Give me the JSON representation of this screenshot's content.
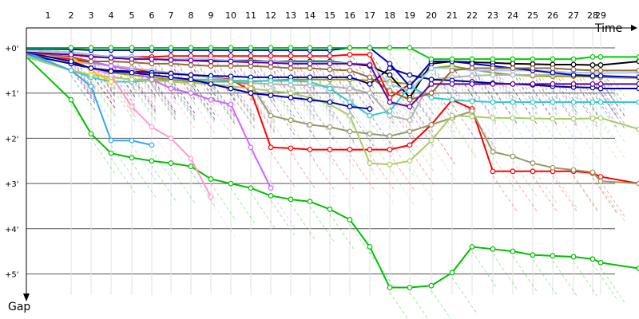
{
  "chart_data": {
    "type": "line",
    "xlabel": "Time",
    "ylabel": "Gap",
    "x": [
      1,
      2,
      3,
      4,
      5,
      6,
      7,
      8,
      9,
      10,
      11,
      12,
      13,
      14,
      15,
      16,
      17,
      18,
      19,
      20,
      21,
      22,
      23,
      24,
      25,
      26,
      27,
      28,
      29,
      30
    ],
    "x_tick_labels": [
      "1",
      "2",
      "3",
      "4",
      "5",
      "6",
      "7",
      "8",
      "9",
      "10",
      "11",
      "12",
      "13",
      "14",
      "15",
      "16",
      "17",
      "18",
      "19",
      "20",
      "21",
      "22",
      "23",
      "24",
      "25",
      "26",
      "27",
      "28",
      "29"
    ],
    "y_tick_labels": [
      "+0'",
      "+1'",
      "+2'",
      "+3'",
      "+4'",
      "+5'"
    ],
    "ylim": [
      0,
      5.8
    ],
    "y_inverted": true,
    "grid": true,
    "series": [
      {
        "color": "#00c000",
        "values": [
          0.2,
          1.15,
          1.9,
          2.33,
          2.43,
          2.5,
          2.55,
          2.62,
          2.9,
          3.0,
          3.1,
          3.27,
          3.35,
          3.4,
          3.57,
          3.8,
          4.4,
          5.3,
          5.3,
          5.26,
          4.97,
          4.4,
          4.45,
          4.5,
          4.58,
          4.6,
          4.62,
          4.67,
          4.75,
          4.88
        ]
      },
      {
        "color": "#ff0000",
        "values": [
          0.15,
          0.25,
          0.32,
          0.4,
          0.45,
          0.55,
          0.57,
          0.6,
          0.65,
          0.7,
          0.95,
          2.2,
          2.22,
          2.25,
          2.25,
          2.25,
          2.25,
          2.25,
          2.15,
          1.7,
          1.15,
          1.35,
          2.73,
          2.73,
          2.73,
          2.73,
          2.73,
          2.77,
          2.85,
          3.0
        ]
      },
      {
        "color": "#ff0000",
        "values": [
          0.1,
          0.15,
          0.18,
          0.2,
          0.2,
          0.2,
          0.18,
          0.18,
          0.18,
          0.18,
          0.18,
          0.18,
          0.18,
          0.18,
          0.18,
          0.15,
          0.15,
          1.1,
          0.8,
          0.0,
          0.0,
          0.0,
          0.0,
          0.0,
          0.0,
          0.0,
          0.0,
          0.0,
          0.0,
          0.0
        ]
      },
      {
        "color": "#999900",
        "values": [
          0.15,
          0.35,
          0.45,
          0.55,
          0.6,
          0.65,
          0.7,
          0.75,
          0.75,
          0.75,
          0.75,
          0.72,
          0.7,
          0.7,
          0.7,
          0.7,
          0.72,
          0.75,
          0.8,
          0.45,
          0.4,
          0.48,
          0.55,
          0.6,
          0.62,
          0.63,
          0.63,
          0.64,
          0.65,
          0.67
        ]
      },
      {
        "color": "#b2b2b2",
        "values": [
          0.1,
          0.3,
          0.35,
          0.4,
          0.45,
          0.5,
          0.55,
          0.6,
          0.65,
          0.72,
          0.78,
          0.8,
          0.82,
          0.83,
          0.85,
          0.9,
          1.0,
          1.5,
          1.6,
          0.7,
          0.65,
          0.62,
          0.6,
          0.6,
          0.6,
          0.6,
          0.6,
          0.6,
          0.62,
          0.67
        ]
      },
      {
        "color": "#000099",
        "values": [
          0.15,
          0.35,
          0.45,
          0.5,
          0.52,
          0.55,
          0.57,
          0.6,
          0.62,
          0.63,
          0.65,
          0.65,
          0.65,
          0.65,
          0.65,
          0.65,
          0.8,
          0.45,
          0.6,
          0.7,
          0.72,
          0.75,
          0.78,
          0.8,
          0.82,
          0.85,
          0.87,
          0.88,
          0.9,
          0.9
        ]
      },
      {
        "color": "#000000",
        "values": [
          0.05,
          0.1,
          0.15,
          0.2,
          0.2,
          0.25,
          0.25,
          0.27,
          0.28,
          0.28,
          0.28,
          0.3,
          0.3,
          0.3,
          0.3,
          0.35,
          0.4,
          0.6,
          1.1,
          0.35,
          0.3,
          0.32,
          0.33,
          0.35,
          0.36,
          0.37,
          0.37,
          0.38,
          0.38,
          0.3
        ]
      },
      {
        "color": "#99ccff",
        "values": [
          0.05,
          0.1,
          0.15,
          0.2,
          0.2,
          0.25,
          0.25,
          0.25,
          0.25,
          0.28,
          0.3,
          0.3,
          0.32,
          0.32,
          0.32,
          0.35,
          0.35,
          0.8,
          0.95,
          0.45,
          0.45,
          0.5,
          0.5,
          0.5,
          0.5,
          0.52,
          0.55,
          0.55,
          0.56,
          0.55
        ]
      },
      {
        "color": "#33cccc",
        "values": [
          0.15,
          0.5,
          0.65,
          0.75,
          0.75,
          0.72,
          0.7,
          0.7,
          0.7,
          0.72,
          0.73,
          0.73,
          0.73,
          0.75,
          0.9,
          1.2,
          1.5,
          1.4,
          0.85,
          1.1,
          1.15,
          1.18,
          1.2,
          1.2,
          1.2,
          1.2,
          1.2,
          1.2,
          1.2,
          1.2
        ]
      },
      {
        "color": "#999966",
        "values": [
          0.2,
          0.5,
          0.6,
          0.65,
          0.7,
          0.7,
          0.72,
          0.72,
          0.75,
          0.75,
          0.8,
          1.5,
          1.6,
          1.7,
          1.75,
          1.85,
          1.9,
          1.95,
          1.85,
          1.7,
          1.55,
          1.4,
          2.3,
          2.4,
          2.55,
          2.65,
          2.7,
          2.75,
          2.95,
          3.0
        ]
      },
      {
        "color": "#aacc66",
        "values": [
          0.2,
          0.5,
          0.6,
          0.65,
          0.7,
          0.72,
          0.75,
          0.78,
          0.8,
          0.85,
          0.9,
          0.95,
          1.0,
          1.1,
          1.25,
          1.5,
          2.55,
          2.58,
          2.5,
          2.05,
          1.5,
          1.52,
          1.55,
          1.55,
          1.56,
          1.57,
          1.57,
          1.56,
          1.55,
          1.8
        ]
      },
      {
        "color": "#cc66ff",
        "values": [
          0.1,
          0.2,
          0.3,
          0.4,
          0.5,
          0.7,
          0.9,
          1.0,
          1.15,
          1.25,
          2.2,
          3.1,
          0.0,
          0.0,
          0.0,
          0.0,
          0.0,
          0.0,
          0.0,
          0.0,
          0.0,
          0.0,
          0.0,
          0.0,
          0.0,
          0.0,
          0.0,
          0.0,
          0.0,
          0.0
        ]
      },
      {
        "color": "#ff99cc",
        "values": [
          0.1,
          0.3,
          0.45,
          0.6,
          1.3,
          1.75,
          2.0,
          2.45,
          3.3,
          0.0,
          0.0,
          0.0,
          0.0,
          0.0,
          0.0,
          0.0,
          0.0,
          0.0,
          0.0,
          0.0,
          0.0,
          0.0,
          0.0,
          0.0,
          0.0,
          0.0,
          0.0,
          0.0,
          0.0,
          0.0
        ]
      },
      {
        "color": "#33aaee",
        "values": [
          0.1,
          0.5,
          0.85,
          2.05,
          2.05,
          2.15,
          0.0,
          0.0,
          0.0,
          0.0,
          0.0,
          0.0,
          0.0,
          0.0,
          0.0,
          0.0,
          0.0,
          0.0,
          0.0,
          0.0,
          0.0,
          0.0,
          0.0,
          0.0,
          0.0,
          0.0,
          0.0,
          0.0,
          0.0,
          0.0
        ]
      },
      {
        "color": "#ffcc00",
        "values": [
          0.1,
          0.2,
          0.5,
          0.75,
          0.0,
          0.0,
          0.0,
          0.0,
          0.0,
          0.0,
          0.0,
          0.0,
          0.0,
          0.0,
          0.0,
          0.0,
          0.0,
          0.0,
          0.0,
          0.0,
          0.0,
          0.0,
          0.0,
          0.0,
          0.0,
          0.0,
          0.0,
          0.0,
          0.0,
          0.0
        ]
      },
      {
        "color": "#0000aa",
        "values": [
          0.1,
          0.3,
          0.45,
          0.52,
          0.55,
          0.6,
          0.65,
          0.7,
          0.8,
          0.9,
          1.0,
          1.05,
          1.1,
          1.15,
          1.2,
          1.3,
          1.35,
          0.0,
          0.0,
          0.0,
          0.0,
          0.0,
          0.0,
          0.0,
          0.0,
          0.0,
          0.0,
          0.0,
          0.0,
          0.0
        ]
      },
      {
        "color": "#0000cc",
        "values": [
          0.02,
          0.03,
          0.05,
          0.05,
          0.05,
          0.05,
          0.05,
          0.05,
          0.05,
          0.05,
          0.05,
          0.05,
          0.05,
          0.05,
          0.05,
          0.0,
          0.0,
          0.35,
          0.85,
          0.3,
          0.3,
          0.35,
          0.4,
          0.45,
          0.5,
          0.55,
          0.6,
          0.62,
          0.62,
          0.65
        ]
      },
      {
        "color": "#00cc00",
        "values": [
          0.0,
          0.0,
          0.0,
          0.0,
          0.0,
          0.0,
          0.0,
          0.0,
          0.0,
          0.0,
          0.0,
          0.0,
          0.0,
          0.0,
          0.0,
          0.0,
          0.0,
          0.0,
          0.0,
          0.25,
          0.25,
          0.25,
          0.25,
          0.25,
          0.25,
          0.25,
          0.25,
          0.2,
          0.2,
          0.2
        ]
      },
      {
        "color": "#996633",
        "values": [
          0.1,
          0.2,
          0.3,
          0.3,
          0.32,
          0.35,
          0.35,
          0.38,
          0.4,
          0.4,
          0.4,
          0.42,
          0.45,
          0.45,
          0.48,
          0.5,
          0.65,
          0.95,
          1.15,
          1.0,
          0.5,
          0.45,
          0.45,
          0.45,
          0.45,
          0.45,
          0.48,
          0.5,
          0.5,
          0.5
        ]
      },
      {
        "color": "#660099",
        "values": [
          0.1,
          0.15,
          0.2,
          0.22,
          0.25,
          0.25,
          0.27,
          0.28,
          0.3,
          0.3,
          0.32,
          0.33,
          0.35,
          0.35,
          0.35,
          0.35,
          0.38,
          1.2,
          1.3,
          0.8,
          0.8,
          0.8,
          0.8,
          0.8,
          0.8,
          0.8,
          0.8,
          0.8,
          0.8,
          0.8
        ]
      }
    ],
    "series_lengths": [
      30,
      30,
      19,
      30,
      30,
      30,
      30,
      30,
      30,
      30,
      30,
      12,
      9,
      6,
      4,
      17,
      30,
      30,
      30,
      30
    ]
  }
}
